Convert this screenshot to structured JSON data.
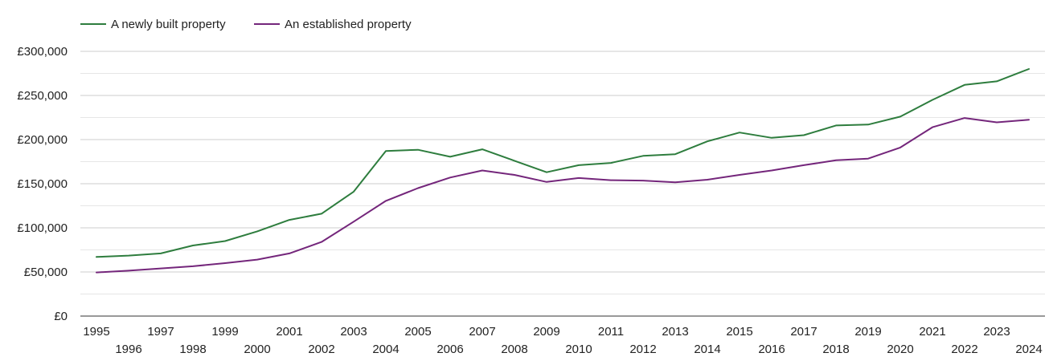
{
  "chart_data": {
    "type": "line",
    "title": "",
    "xlabel": "",
    "ylabel": "",
    "x": [
      1995,
      1996,
      1997,
      1998,
      1999,
      2000,
      2001,
      2002,
      2003,
      2004,
      2005,
      2006,
      2007,
      2008,
      2009,
      2010,
      2011,
      2012,
      2013,
      2014,
      2015,
      2016,
      2017,
      2018,
      2019,
      2020,
      2021,
      2022,
      2023,
      2024
    ],
    "ylim": [
      0,
      300000
    ],
    "y_ticks": [
      0,
      50000,
      100000,
      150000,
      200000,
      250000,
      300000
    ],
    "y_tick_labels": [
      "£0",
      "£50,000",
      "£100,000",
      "£150,000",
      "£200,000",
      "£250,000",
      "£300,000"
    ],
    "x_tick_labels": [
      "1995",
      "1996",
      "1997",
      "1998",
      "1999",
      "2000",
      "2001",
      "2002",
      "2003",
      "2004",
      "2005",
      "2006",
      "2007",
      "2008",
      "2009",
      "2010",
      "2011",
      "2012",
      "2013",
      "2014",
      "2015",
      "2016",
      "2017",
      "2018",
      "2019",
      "2020",
      "2021",
      "2022",
      "2023",
      "2024"
    ],
    "grid": true,
    "legend_position": "top-left",
    "series": [
      {
        "name": "A newly built property",
        "color": "#2e7d3e",
        "values": [
          67000,
          68500,
          71000,
          80000,
          85000,
          96000,
          109000,
          116000,
          141000,
          187000,
          188500,
          180500,
          189000,
          176000,
          163000,
          171000,
          173500,
          181500,
          183500,
          198000,
          208000,
          202000,
          205000,
          216000,
          217000,
          226000,
          245000,
          262000,
          266000,
          280000
        ]
      },
      {
        "name": "An established property",
        "color": "#74267b",
        "values": [
          49500,
          51500,
          54000,
          56500,
          60000,
          64000,
          71000,
          84000,
          107000,
          130500,
          145000,
          157000,
          165000,
          160000,
          152000,
          156500,
          154000,
          153500,
          151500,
          154500,
          160000,
          165000,
          171000,
          176500,
          178500,
          191000,
          214000,
          224500,
          219500,
          222500
        ]
      }
    ]
  }
}
